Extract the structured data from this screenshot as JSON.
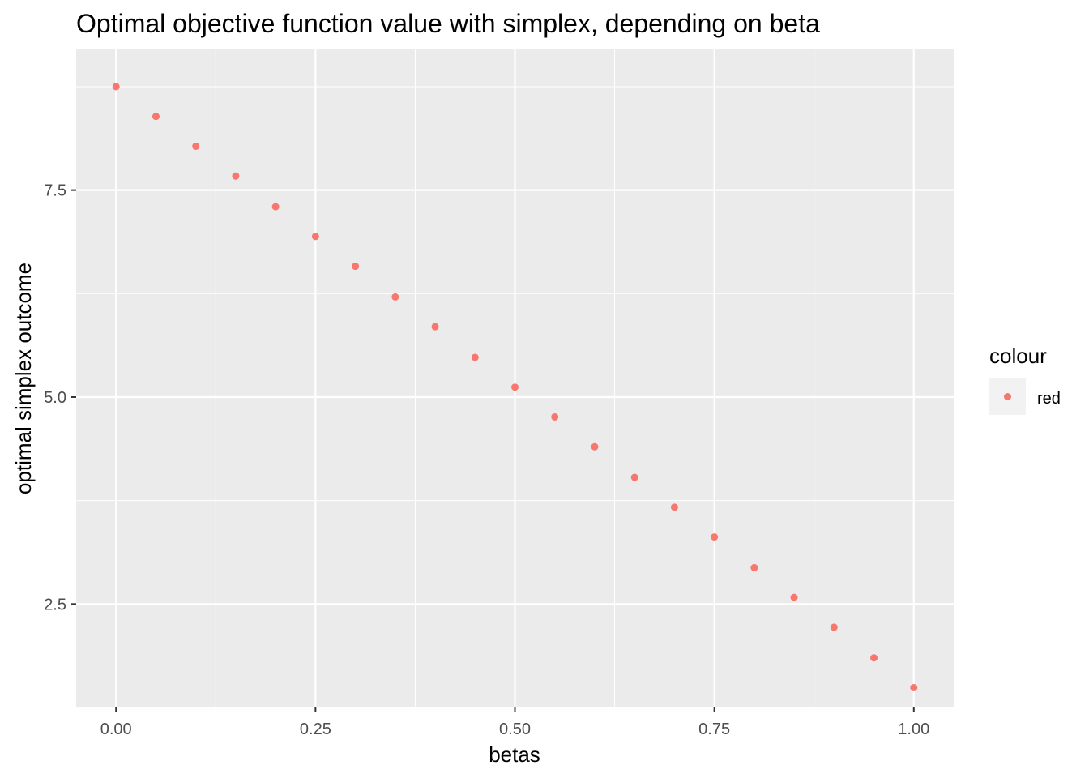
{
  "chart_data": {
    "type": "scatter",
    "title": "Optimal objective function value with simplex, depending on beta",
    "xlabel": "betas",
    "ylabel": "optimal simplex outcome",
    "xlim": [
      -0.05,
      1.05
    ],
    "ylim": [
      1.25,
      9.2
    ],
    "x_ticks": [
      {
        "value": 0.0,
        "label": "0.00"
      },
      {
        "value": 0.25,
        "label": "0.25"
      },
      {
        "value": 0.5,
        "label": "0.50"
      },
      {
        "value": 0.75,
        "label": "0.75"
      },
      {
        "value": 1.0,
        "label": "1.00"
      }
    ],
    "y_ticks": [
      {
        "value": 2.5,
        "label": "2.5"
      },
      {
        "value": 5.0,
        "label": "5.0"
      },
      {
        "value": 7.5,
        "label": "7.5"
      }
    ],
    "grid": true,
    "legend": {
      "title": "colour",
      "position": "right",
      "entries": [
        {
          "label": "red",
          "color": "#F8766D"
        }
      ]
    },
    "series": [
      {
        "name": "red",
        "color": "#F8766D",
        "x": [
          0.0,
          0.05,
          0.1,
          0.15,
          0.2,
          0.25,
          0.3,
          0.35,
          0.4,
          0.45,
          0.5,
          0.55,
          0.6,
          0.65,
          0.7,
          0.75,
          0.8,
          0.85,
          0.9,
          0.95,
          1.0
        ],
        "y": [
          8.75,
          8.39,
          8.03,
          7.67,
          7.3,
          6.94,
          6.58,
          6.21,
          5.85,
          5.48,
          5.12,
          4.76,
          4.4,
          4.03,
          3.67,
          3.31,
          2.94,
          2.58,
          2.22,
          1.85,
          1.49
        ]
      }
    ]
  },
  "colors": {
    "panel_background": "#EBEBEB",
    "grid_major": "#FFFFFF",
    "point": "#F8766D",
    "legend_key_background": "#F2F2F2"
  }
}
